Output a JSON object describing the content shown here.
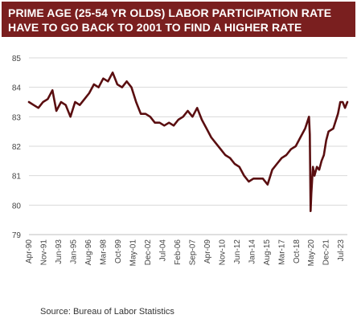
{
  "title_lines": [
    "PRIME AGE (25-54 YR OLDS) LABOR PARTICIPATION RATE",
    "HAVE TO GO BACK TO 2001 TO FIND A HIGHER RATE"
  ],
  "source": "Source:  Bureau of Labor Statistics",
  "colors": {
    "title_bg": "#7a1f1f",
    "line": "#5a0e10",
    "grid": "#d9d9d9",
    "text": "#444444"
  },
  "chart_data": {
    "type": "line",
    "ylim": [
      79,
      85
    ],
    "yticks": [
      79,
      80,
      81,
      82,
      83,
      84,
      85
    ],
    "grid": "horizontal",
    "x_range": [
      "1990-04",
      "2024-03"
    ],
    "xtick_labels": [
      "Apr-90",
      "Nov-91",
      "Jun-93",
      "Jan-95",
      "Aug-96",
      "Mar-98",
      "Oct-99",
      "May-01",
      "Dec-02",
      "Jul-04",
      "Feb-06",
      "Sep-07",
      "Apr-09",
      "Nov-10",
      "Jun-12",
      "Jan-14",
      "Aug-15",
      "Mar-17",
      "Oct-18",
      "May-20",
      "Dec-21",
      "Jul-23"
    ],
    "xtick_dates": [
      "1990-04",
      "1991-11",
      "1993-06",
      "1995-01",
      "1996-08",
      "1998-03",
      "1999-10",
      "2001-05",
      "2002-12",
      "2004-07",
      "2006-02",
      "2007-09",
      "2009-04",
      "2010-11",
      "2012-06",
      "2014-01",
      "2015-08",
      "2017-03",
      "2018-10",
      "2020-05",
      "2021-12",
      "2023-07"
    ],
    "series": [
      {
        "points": [
          [
            "1990-04",
            83.5
          ],
          [
            "1990-10",
            83.4
          ],
          [
            "1991-04",
            83.3
          ],
          [
            "1991-10",
            83.5
          ],
          [
            "1992-04",
            83.6
          ],
          [
            "1992-10",
            83.9
          ],
          [
            "1993-03",
            83.2
          ],
          [
            "1993-09",
            83.5
          ],
          [
            "1994-03",
            83.4
          ],
          [
            "1994-09",
            83.0
          ],
          [
            "1995-03",
            83.5
          ],
          [
            "1995-09",
            83.4
          ],
          [
            "1996-03",
            83.6
          ],
          [
            "1996-09",
            83.8
          ],
          [
            "1997-03",
            84.1
          ],
          [
            "1997-09",
            84.0
          ],
          [
            "1998-03",
            84.3
          ],
          [
            "1998-09",
            84.2
          ],
          [
            "1999-03",
            84.5
          ],
          [
            "1999-09",
            84.1
          ],
          [
            "2000-03",
            84.0
          ],
          [
            "2000-09",
            84.2
          ],
          [
            "2001-03",
            84.0
          ],
          [
            "2001-09",
            83.5
          ],
          [
            "2002-03",
            83.1
          ],
          [
            "2002-09",
            83.1
          ],
          [
            "2003-03",
            83.0
          ],
          [
            "2003-09",
            82.8
          ],
          [
            "2004-03",
            82.8
          ],
          [
            "2004-09",
            82.7
          ],
          [
            "2005-03",
            82.8
          ],
          [
            "2005-09",
            82.7
          ],
          [
            "2006-03",
            82.9
          ],
          [
            "2006-09",
            83.0
          ],
          [
            "2007-03",
            83.2
          ],
          [
            "2007-09",
            83.0
          ],
          [
            "2008-03",
            83.3
          ],
          [
            "2008-09",
            82.9
          ],
          [
            "2009-03",
            82.6
          ],
          [
            "2009-09",
            82.3
          ],
          [
            "2010-03",
            82.1
          ],
          [
            "2010-09",
            81.9
          ],
          [
            "2011-03",
            81.7
          ],
          [
            "2011-09",
            81.6
          ],
          [
            "2012-03",
            81.4
          ],
          [
            "2012-09",
            81.3
          ],
          [
            "2013-03",
            81.0
          ],
          [
            "2013-09",
            80.8
          ],
          [
            "2014-03",
            80.9
          ],
          [
            "2014-09",
            80.9
          ],
          [
            "2015-03",
            80.9
          ],
          [
            "2015-09",
            80.7
          ],
          [
            "2016-03",
            81.2
          ],
          [
            "2016-09",
            81.4
          ],
          [
            "2017-03",
            81.6
          ],
          [
            "2017-09",
            81.7
          ],
          [
            "2018-03",
            81.9
          ],
          [
            "2018-09",
            82.0
          ],
          [
            "2019-03",
            82.3
          ],
          [
            "2019-09",
            82.6
          ],
          [
            "2020-02",
            83.0
          ],
          [
            "2020-03",
            82.4
          ],
          [
            "2020-04",
            79.8
          ],
          [
            "2020-05",
            80.4
          ],
          [
            "2020-07",
            81.3
          ],
          [
            "2020-09",
            81.0
          ],
          [
            "2020-12",
            81.3
          ],
          [
            "2021-03",
            81.2
          ],
          [
            "2021-06",
            81.5
          ],
          [
            "2021-09",
            81.7
          ],
          [
            "2021-12",
            82.2
          ],
          [
            "2022-03",
            82.5
          ],
          [
            "2022-09",
            82.6
          ],
          [
            "2023-03",
            83.1
          ],
          [
            "2023-06",
            83.5
          ],
          [
            "2023-09",
            83.5
          ],
          [
            "2023-12",
            83.3
          ],
          [
            "2024-03",
            83.5
          ]
        ]
      }
    ]
  }
}
